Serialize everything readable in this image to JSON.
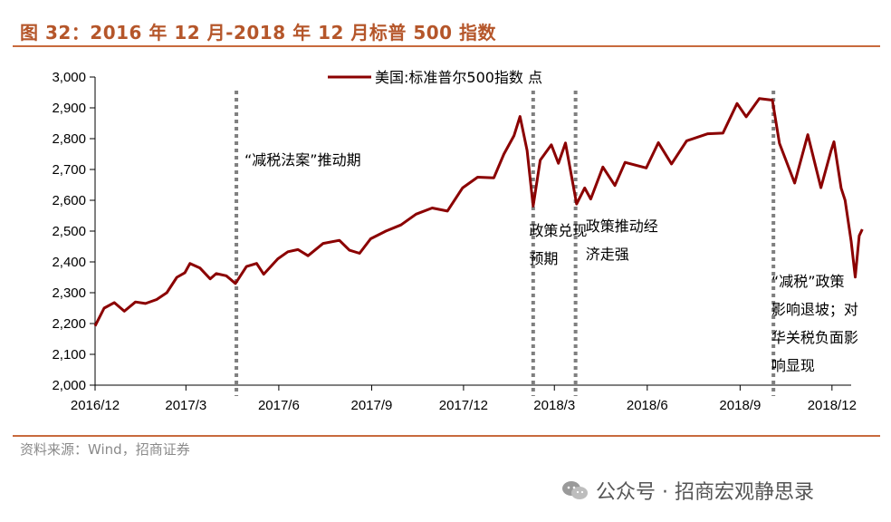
{
  "title": "图 32：2016 年 12 月-2018 年 12 月标普 500 指数",
  "source": "资料来源：Wind，招商证券",
  "watermark": "公众号 · 招商宏观静思录",
  "chart_data": {
    "type": "line",
    "legend": "美国:标准普尔500指数 点",
    "legend_position": "top-center",
    "ylim": [
      2000,
      3000
    ],
    "xlim": [
      "2016-12",
      "2018-12-20"
    ],
    "y_ticks": [
      "2,000",
      "2,100",
      "2,200",
      "2,300",
      "2,400",
      "2,500",
      "2,600",
      "2,700",
      "2,800",
      "2,900",
      "3,000"
    ],
    "y_tick_values": [
      2000,
      2100,
      2200,
      2300,
      2400,
      2500,
      2600,
      2700,
      2800,
      2900,
      3000
    ],
    "x_ticks": [
      "2016/12",
      "2017/3",
      "2017/6",
      "2017/9",
      "2017/12",
      "2018/3",
      "2018/6",
      "2018/9",
      "2018/12"
    ],
    "x_tick_values": [
      "2016-12",
      "2017-03",
      "2017-06",
      "2017-09",
      "2017-12",
      "2018-03",
      "2018-06",
      "2018-09",
      "2018-12"
    ],
    "line_color": "#8b0000",
    "series": [
      {
        "name": "美国:标准普尔500指数 点",
        "points": [
          [
            "2016-12-01",
            2192
          ],
          [
            "2016-12-10",
            2250
          ],
          [
            "2016-12-20",
            2268
          ],
          [
            "2016-12-30",
            2240
          ],
          [
            "2017-01-10",
            2270
          ],
          [
            "2017-01-20",
            2265
          ],
          [
            "2017-01-31",
            2278
          ],
          [
            "2017-02-10",
            2300
          ],
          [
            "2017-02-20",
            2350
          ],
          [
            "2017-02-28",
            2365
          ],
          [
            "2017-03-05",
            2395
          ],
          [
            "2017-03-15",
            2380
          ],
          [
            "2017-03-25",
            2345
          ],
          [
            "2017-03-31",
            2362
          ],
          [
            "2017-04-10",
            2355
          ],
          [
            "2017-04-19",
            2330
          ],
          [
            "2017-04-30",
            2385
          ],
          [
            "2017-05-10",
            2395
          ],
          [
            "2017-05-17",
            2360
          ],
          [
            "2017-05-31",
            2410
          ],
          [
            "2017-06-10",
            2433
          ],
          [
            "2017-06-20",
            2440
          ],
          [
            "2017-06-30",
            2420
          ],
          [
            "2017-07-15",
            2460
          ],
          [
            "2017-07-31",
            2470
          ],
          [
            "2017-08-10",
            2438
          ],
          [
            "2017-08-20",
            2428
          ],
          [
            "2017-08-31",
            2475
          ],
          [
            "2017-09-15",
            2500
          ],
          [
            "2017-09-30",
            2520
          ],
          [
            "2017-10-15",
            2555
          ],
          [
            "2017-10-31",
            2575
          ],
          [
            "2017-11-15",
            2565
          ],
          [
            "2017-11-30",
            2640
          ],
          [
            "2017-12-15",
            2675
          ],
          [
            "2017-12-31",
            2673
          ],
          [
            "2018-01-10",
            2750
          ],
          [
            "2018-01-20",
            2810
          ],
          [
            "2018-01-26",
            2872
          ],
          [
            "2018-02-02",
            2762
          ],
          [
            "2018-02-08",
            2581
          ],
          [
            "2018-02-15",
            2730
          ],
          [
            "2018-02-26",
            2780
          ],
          [
            "2018-03-05",
            2720
          ],
          [
            "2018-03-12",
            2786
          ],
          [
            "2018-03-23",
            2588
          ],
          [
            "2018-03-31",
            2640
          ],
          [
            "2018-04-06",
            2604
          ],
          [
            "2018-04-18",
            2708
          ],
          [
            "2018-04-30",
            2648
          ],
          [
            "2018-05-10",
            2723
          ],
          [
            "2018-05-31",
            2705
          ],
          [
            "2018-06-12",
            2787
          ],
          [
            "2018-06-25",
            2718
          ],
          [
            "2018-07-10",
            2793
          ],
          [
            "2018-07-31",
            2816
          ],
          [
            "2018-08-15",
            2818
          ],
          [
            "2018-08-29",
            2914
          ],
          [
            "2018-09-07",
            2871
          ],
          [
            "2018-09-20",
            2930
          ],
          [
            "2018-10-03",
            2925
          ],
          [
            "2018-10-10",
            2785
          ],
          [
            "2018-10-25",
            2656
          ],
          [
            "2018-11-07",
            2813
          ],
          [
            "2018-11-20",
            2641
          ],
          [
            "2018-11-30",
            2760
          ],
          [
            "2018-12-03",
            2790
          ],
          [
            "2018-12-10",
            2640
          ],
          [
            "2018-12-14",
            2600
          ],
          [
            "2018-12-20",
            2467
          ],
          [
            "2018-12-24",
            2351
          ],
          [
            "2018-12-28",
            2485
          ],
          [
            "2018-12-31",
            2506
          ]
        ]
      }
    ],
    "dividers": [
      "2017-04-20",
      "2018-02-08",
      "2018-03-22",
      "2018-10-04"
    ],
    "annotations": [
      {
        "lines": [
          "“减税法案”推动期"
        ],
        "at": [
          "2017-04-28",
          2715
        ]
      },
      {
        "lines": [
          "政策兑现",
          "预期"
        ],
        "at": [
          "2018-02-04",
          2485
        ]
      },
      {
        "lines": [
          "政策推动经",
          "济走强"
        ],
        "at": [
          "2018-04-01",
          2500
        ]
      },
      {
        "lines": [
          "“减税”政策",
          "影响退坡；对",
          "华关税负面影",
          "响显现"
        ],
        "at": [
          "2018-10-02",
          2320
        ]
      }
    ]
  }
}
